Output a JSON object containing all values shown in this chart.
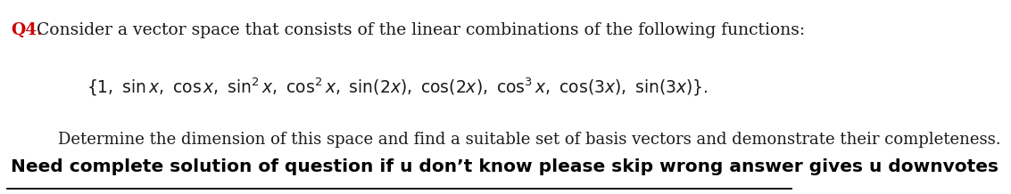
{
  "line1_prefix": "Q4.",
  "line1_prefix_color": "#cc0000",
  "line1_text": "  Consider a vector space that consists of the linear combinations of the following functions:",
  "line1_text_color": "#1a1a1a",
  "line2_color": "#1a1a1a",
  "line3_text": "Determine the dimension of this space and find a suitable set of basis vectors and demonstrate their completeness.",
  "line3_color": "#1a1a1a",
  "line4_text": "Need complete solution of question if u don’t know please skip wrong answer gives u downvotes",
  "line4_color": "#000000",
  "bg_color": "#ffffff",
  "fontsize_line1": 13.5,
  "fontsize_line2": 13.5,
  "fontsize_line3": 13.0,
  "fontsize_line4": 14.5
}
